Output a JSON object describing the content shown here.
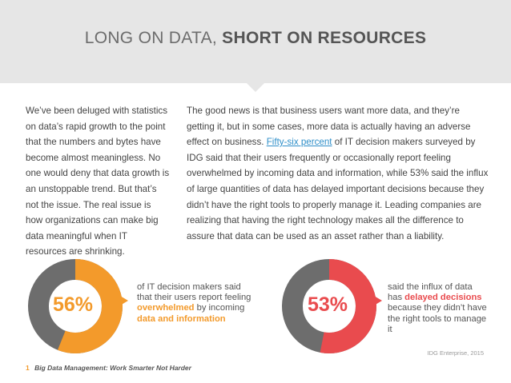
{
  "header": {
    "title_light": "LONG ON DATA,",
    "title_bold": "SHORT ON RESOURCES"
  },
  "left_column": {
    "text": "We’ve been deluged with statistics on data’s rapid growth to the point that the numbers and bytes have become almost meaningless. No one would deny that data growth is an unstoppable trend. But that’s not the issue. The real issue is how organizations can make big data meaningful when IT resources are shrinking."
  },
  "right_column": {
    "intro": "The good news is that business users want more data, and they’re getting it, but in some cases, more data is actually having an adverse effect on business.",
    "link_text": "Fifty-six percent",
    "rest": "of IT decision makers surveyed by IDG said that their users frequently or occasionally report feeling overwhelmed by incoming data and information, while 53% said the influx of large quantities of data has delayed important decisions because they didn’t have the right tools to properly manage it. Leading companies are realizing that having the right technology makes all the difference to assure that data can be used as an asset rather than a liability."
  },
  "stats": [
    {
      "value": "56%",
      "percent": 56,
      "color": "#f39a2b",
      "text_before": "of IT decision makers said that their users report feeling",
      "highlight1": "overwhelmed",
      "text_mid": "by incoming",
      "highlight2": "data and information"
    },
    {
      "value": "53%",
      "percent": 53,
      "color": "#e94b4e",
      "text_before": "said the influx of data has",
      "highlight1": "delayed decisions",
      "text_after": "because they didn’t have the right tools to manage it"
    }
  ],
  "source": "IDG Enterprise, 2015",
  "footer": {
    "page_number": "1",
    "title": "Big Data Management: Work Smarter Not Harder"
  },
  "colors": {
    "orange": "#f39a2b",
    "red": "#e94b4e",
    "gray": "#6d6d6d",
    "header_bg": "#e6e6e6"
  }
}
